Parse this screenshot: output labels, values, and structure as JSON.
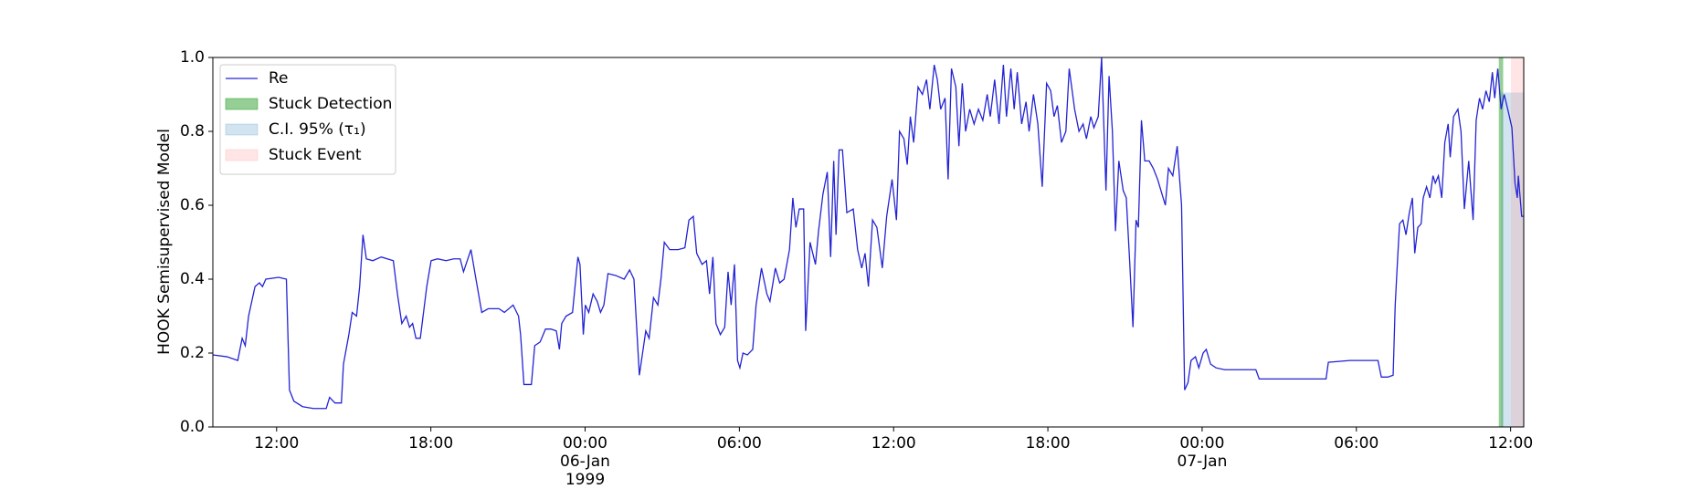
{
  "chart_data": {
    "type": "line",
    "ylabel": "HOOK Semisupervised Model",
    "x": [
      9.52,
      10.07,
      10.49,
      10.66,
      10.78,
      10.91,
      11.16,
      11.33,
      11.45,
      11.58,
      12.08,
      12.38,
      12.5,
      12.67,
      13.01,
      13.43,
      13.93,
      14.06,
      14.27,
      14.52,
      14.6,
      14.81,
      14.94,
      15.11,
      15.23,
      15.36,
      15.49,
      15.74,
      16.07,
      16.54,
      16.7,
      16.87,
      17.04,
      17.17,
      17.29,
      17.42,
      17.59,
      17.84,
      18.01,
      18.26,
      18.59,
      18.89,
      19.14,
      19.27,
      19.56,
      19.73,
      19.98,
      20.23,
      20.65,
      20.86,
      21.2,
      21.41,
      21.49,
      21.62,
      21.91,
      22.04,
      22.25,
      22.46,
      22.67,
      22.88,
      23.0,
      23.09,
      23.26,
      23.51,
      23.72,
      23.8,
      23.93,
      24.01,
      24.14,
      24.31,
      24.47,
      24.6,
      24.73,
      24.89,
      25.19,
      25.52,
      25.73,
      25.9,
      26.11,
      26.36,
      26.49,
      26.66,
      26.83,
      26.95,
      27.08,
      27.29,
      27.62,
      27.88,
      28.04,
      28.21,
      28.34,
      28.55,
      28.72,
      28.84,
      28.97,
      29.09,
      29.26,
      29.43,
      29.56,
      29.68,
      29.81,
      29.93,
      30.02,
      30.14,
      30.31,
      30.52,
      30.65,
      30.86,
      31.07,
      31.19,
      31.4,
      31.57,
      31.74,
      31.95,
      32.08,
      32.2,
      32.33,
      32.5,
      32.58,
      32.75,
      32.96,
      33.08,
      33.25,
      33.42,
      33.55,
      33.67,
      33.76,
      33.88,
      34.01,
      34.18,
      34.43,
      34.6,
      34.76,
      34.89,
      35.02,
      35.18,
      35.35,
      35.56,
      35.73,
      35.94,
      36.11,
      36.23,
      36.4,
      36.53,
      36.65,
      36.78,
      36.95,
      37.12,
      37.28,
      37.41,
      37.58,
      37.7,
      37.83,
      38.0,
      38.12,
      38.25,
      38.42,
      38.54,
      38.67,
      38.8,
      38.96,
      39.13,
      39.3,
      39.47,
      39.64,
      39.76,
      39.93,
      40.1,
      40.27,
      40.39,
      40.56,
      40.69,
      40.81,
      40.98,
      41.15,
      41.27,
      41.44,
      41.61,
      41.78,
      41.95,
      42.11,
      42.24,
      42.37,
      42.53,
      42.7,
      42.83,
      43.04,
      43.21,
      43.37,
      43.5,
      43.67,
      43.79,
      43.96,
      44.09,
      44.26,
      44.38,
      44.51,
      44.63,
      44.76,
      44.93,
      45.05,
      45.18,
      45.31,
      45.43,
      45.52,
      45.64,
      45.77,
      45.94,
      46.1,
      46.27,
      46.44,
      46.57,
      46.69,
      46.86,
      47.03,
      47.2,
      47.32,
      47.45,
      47.57,
      47.74,
      47.87,
      48.04,
      48.16,
      48.33,
      48.54,
      48.88,
      49.34,
      50.09,
      50.22,
      50.81,
      51.65,
      52.82,
      52.91,
      53.75,
      54.84,
      54.97,
      55.22,
      55.43,
      55.51,
      55.6,
      55.68,
      55.81,
      55.93,
      56.06,
      56.18,
      56.27,
      56.39,
      56.52,
      56.6,
      56.73,
      56.86,
      56.98,
      57.07,
      57.19,
      57.32,
      57.44,
      57.57,
      57.65,
      57.78,
      57.95,
      58.07,
      58.2,
      58.37,
      58.54,
      58.66,
      58.79,
      58.91,
      59.04,
      59.17,
      59.29,
      59.38,
      59.5,
      59.63,
      59.75,
      59.92,
      60.05,
      60.17,
      60.26,
      60.3,
      60.43,
      60.51
    ],
    "series": [
      {
        "name": "Re",
        "color": "#2323d4",
        "values": [
          0.195,
          0.19,
          0.18,
          0.24,
          0.22,
          0.3,
          0.38,
          0.39,
          0.38,
          0.4,
          0.405,
          0.4,
          0.1,
          0.07,
          0.055,
          0.05,
          0.05,
          0.08,
          0.065,
          0.065,
          0.17,
          0.25,
          0.31,
          0.3,
          0.38,
          0.52,
          0.455,
          0.45,
          0.46,
          0.45,
          0.36,
          0.28,
          0.3,
          0.27,
          0.28,
          0.24,
          0.24,
          0.38,
          0.45,
          0.455,
          0.45,
          0.455,
          0.455,
          0.42,
          0.48,
          0.41,
          0.31,
          0.32,
          0.32,
          0.31,
          0.33,
          0.3,
          0.25,
          0.115,
          0.115,
          0.22,
          0.23,
          0.265,
          0.265,
          0.26,
          0.21,
          0.28,
          0.3,
          0.31,
          0.46,
          0.44,
          0.25,
          0.33,
          0.31,
          0.36,
          0.34,
          0.31,
          0.33,
          0.415,
          0.41,
          0.4,
          0.425,
          0.4,
          0.14,
          0.26,
          0.24,
          0.35,
          0.33,
          0.4,
          0.5,
          0.48,
          0.48,
          0.485,
          0.56,
          0.57,
          0.47,
          0.44,
          0.45,
          0.36,
          0.46,
          0.28,
          0.25,
          0.27,
          0.42,
          0.33,
          0.44,
          0.18,
          0.16,
          0.2,
          0.195,
          0.21,
          0.33,
          0.43,
          0.36,
          0.34,
          0.43,
          0.39,
          0.4,
          0.48,
          0.62,
          0.54,
          0.59,
          0.59,
          0.26,
          0.5,
          0.44,
          0.53,
          0.63,
          0.69,
          0.46,
          0.72,
          0.52,
          0.75,
          0.75,
          0.58,
          0.59,
          0.48,
          0.43,
          0.47,
          0.38,
          0.56,
          0.54,
          0.43,
          0.57,
          0.67,
          0.56,
          0.8,
          0.78,
          0.71,
          0.84,
          0.77,
          0.92,
          0.9,
          0.94,
          0.86,
          0.98,
          0.94,
          0.86,
          0.89,
          0.67,
          0.97,
          0.92,
          0.76,
          0.93,
          0.8,
          0.86,
          0.82,
          0.86,
          0.83,
          0.9,
          0.84,
          0.94,
          0.82,
          0.98,
          0.84,
          0.97,
          0.86,
          0.96,
          0.82,
          0.88,
          0.8,
          0.9,
          0.82,
          0.65,
          0.93,
          0.91,
          0.84,
          0.87,
          0.77,
          0.8,
          0.97,
          0.86,
          0.8,
          0.82,
          0.78,
          0.84,
          0.81,
          0.84,
          1.0,
          0.64,
          0.95,
          0.8,
          0.53,
          0.72,
          0.64,
          0.62,
          0.45,
          0.27,
          0.56,
          0.54,
          0.83,
          0.72,
          0.72,
          0.7,
          0.67,
          0.63,
          0.6,
          0.7,
          0.68,
          0.76,
          0.6,
          0.1,
          0.12,
          0.18,
          0.19,
          0.16,
          0.2,
          0.21,
          0.17,
          0.16,
          0.155,
          0.155,
          0.155,
          0.13,
          0.13,
          0.13,
          0.13,
          0.175,
          0.18,
          0.18,
          0.135,
          0.135,
          0.14,
          0.33,
          0.45,
          0.55,
          0.56,
          0.52,
          0.58,
          0.62,
          0.47,
          0.54,
          0.55,
          0.62,
          0.65,
          0.62,
          0.68,
          0.66,
          0.68,
          0.62,
          0.77,
          0.82,
          0.73,
          0.84,
          0.86,
          0.8,
          0.59,
          0.72,
          0.56,
          0.83,
          0.89,
          0.86,
          0.91,
          0.88,
          0.96,
          0.89,
          0.97,
          0.86,
          0.9,
          0.85,
          0.81,
          0.66,
          0.62,
          0.68,
          0.57,
          0.57
        ]
      }
    ],
    "spans": [
      {
        "name": "Stuck Detection",
        "color": "#2ca02c",
        "alpha": 0.5,
        "x": [
          59.54,
          59.71
        ]
      },
      {
        "name": "C.I. 95% (τ₁)",
        "color": "#1f77b4",
        "alpha": 0.2,
        "x": [
          59.63,
          60.51
        ],
        "y": [
          0,
          0.905
        ]
      },
      {
        "name": "Stuck Event",
        "color": "#ff9999",
        "alpha": 0.25,
        "x": [
          60.01,
          60.51
        ]
      }
    ],
    "xlim": [
      9.52,
      60.51
    ],
    "xticks": [
      {
        "value": 12,
        "label": "12:00"
      },
      {
        "value": 18,
        "label": "18:00"
      },
      {
        "value": 24,
        "label": "00:00\n06-Jan\n1999"
      },
      {
        "value": 30,
        "label": "06:00"
      },
      {
        "value": 36,
        "label": "12:00"
      },
      {
        "value": 42,
        "label": "18:00"
      },
      {
        "value": 48,
        "label": "00:00\n07-Jan"
      },
      {
        "value": 54,
        "label": "06:00"
      },
      {
        "value": 60,
        "label": "12:00"
      }
    ],
    "ylim": [
      0,
      1
    ],
    "yticks": [
      {
        "value": 0,
        "label": "0.0"
      },
      {
        "value": 0.2,
        "label": "0.2"
      },
      {
        "value": 0.4,
        "label": "0.4"
      },
      {
        "value": 0.6,
        "label": "0.6"
      },
      {
        "value": 0.8,
        "label": "0.8"
      },
      {
        "value": 1,
        "label": "1.0"
      }
    ],
    "legend": "upper left"
  }
}
